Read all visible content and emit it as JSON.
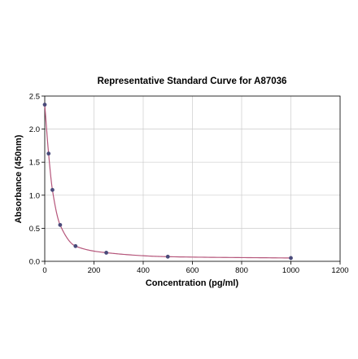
{
  "chart_data": {
    "type": "scatter",
    "title": "Representative Standard Curve for A87036",
    "xlabel": "Concentration (pg/ml)",
    "ylabel": "Absorbance (450nm)",
    "xlim": [
      0,
      1200
    ],
    "ylim": [
      0,
      2.5
    ],
    "x_ticks": [
      "0",
      "200",
      "400",
      "600",
      "800",
      "1000",
      "1200"
    ],
    "y_ticks": [
      "0.0",
      "0.5",
      "1.0",
      "1.5",
      "2.0",
      "2.5"
    ],
    "grid": true,
    "series": [
      {
        "x": [
          0,
          15.6,
          31.2,
          62.5,
          125,
          250,
          500,
          1000
        ],
        "y": [
          2.37,
          1.63,
          1.08,
          0.55,
          0.23,
          0.13,
          0.07,
          0.05
        ]
      }
    ],
    "colors": {
      "points": "#4a4a7a",
      "curve": "#b5557a",
      "grid": "#cccccc"
    }
  }
}
